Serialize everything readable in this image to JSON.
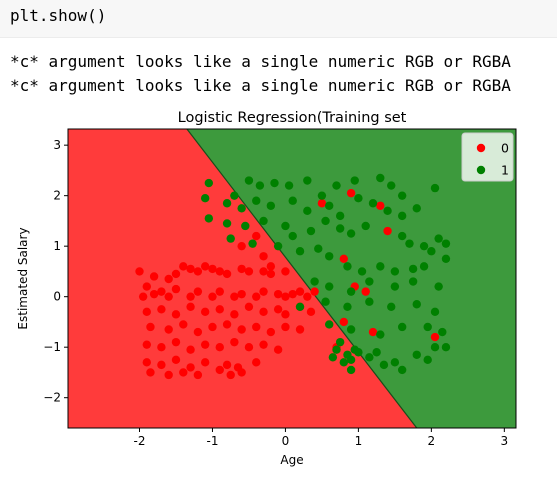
{
  "code": {
    "text": "plt.show()"
  },
  "output": {
    "lines": [
      "*c* argument looks like a single numeric RGB or RGBA",
      "*c* argument looks like a single numeric RGB or RGBA"
    ]
  },
  "colors": {
    "region_0": "#ff3b3b",
    "region_1": "#3d9a3d",
    "point_0": "#ff0000",
    "point_1": "#008000",
    "boundary": "#1a4d1a",
    "cell_bg": "#f7f7f7"
  },
  "chart_data": {
    "type": "scatter",
    "title": "Logistic Regression(Training set",
    "xlabel": "Age",
    "ylabel": "Estimated Salary",
    "xlim": [
      -2.98,
      3.16
    ],
    "ylim": [
      -2.6,
      3.32
    ],
    "x_ticks": [
      "-2",
      "-1",
      "0",
      "1",
      "2",
      "3"
    ],
    "x_tick_values": [
      -2,
      -1,
      0,
      1,
      2,
      3
    ],
    "y_ticks": [
      "3",
      "2",
      "1",
      "0",
      "−1",
      "−2"
    ],
    "y_tick_values": [
      3,
      2,
      1,
      0,
      -1,
      -2
    ],
    "grid": false,
    "legend": {
      "position": "top-right",
      "entries": [
        "0",
        "1"
      ]
    },
    "decision_boundary": {
      "points": [
        [
          -1.35,
          3.32
        ],
        [
          1.8,
          -2.6
        ]
      ]
    },
    "series": [
      {
        "name": "0",
        "points": [
          [
            -2.0,
            0.5
          ],
          [
            -1.9,
            0.2
          ],
          [
            -1.8,
            0.4
          ],
          [
            -1.6,
            0.35
          ],
          [
            -1.5,
            0.45
          ],
          [
            -1.4,
            0.6
          ],
          [
            -1.3,
            0.55
          ],
          [
            -1.2,
            0.5
          ],
          [
            -1.1,
            0.6
          ],
          [
            -1.0,
            0.55
          ],
          [
            -0.9,
            0.5
          ],
          [
            -0.8,
            0.45
          ],
          [
            -0.6,
            0.55
          ],
          [
            -0.5,
            0.5
          ],
          [
            -0.3,
            0.5
          ],
          [
            -0.2,
            0.45
          ],
          [
            -1.95,
            0.0
          ],
          [
            -1.8,
            0.05
          ],
          [
            -1.7,
            0.1
          ],
          [
            -1.6,
            0.0
          ],
          [
            -1.5,
            0.15
          ],
          [
            -1.3,
            0.0
          ],
          [
            -1.2,
            0.1
          ],
          [
            -1.0,
            0.0
          ],
          [
            -0.9,
            0.1
          ],
          [
            -0.7,
            0.0
          ],
          [
            -0.6,
            0.05
          ],
          [
            -0.4,
            0.0
          ],
          [
            -0.3,
            0.1
          ],
          [
            -0.1,
            0.05
          ],
          [
            0.0,
            0.0
          ],
          [
            0.1,
            0.05
          ],
          [
            0.2,
            0.1
          ],
          [
            0.3,
            0.0
          ],
          [
            0.4,
            0.1
          ],
          [
            -1.9,
            -0.3
          ],
          [
            -1.7,
            -0.25
          ],
          [
            -1.5,
            -0.35
          ],
          [
            -1.3,
            -0.2
          ],
          [
            -1.1,
            -0.3
          ],
          [
            -0.9,
            -0.25
          ],
          [
            -0.7,
            -0.35
          ],
          [
            -0.5,
            -0.2
          ],
          [
            -0.3,
            -0.3
          ],
          [
            -0.1,
            -0.25
          ],
          [
            0.0,
            -0.35
          ],
          [
            0.2,
            -0.2
          ],
          [
            0.35,
            -0.3
          ],
          [
            -1.85,
            -0.6
          ],
          [
            -1.6,
            -0.65
          ],
          [
            -1.4,
            -0.55
          ],
          [
            -1.2,
            -0.7
          ],
          [
            -1.0,
            -0.6
          ],
          [
            -0.8,
            -0.55
          ],
          [
            -0.6,
            -0.65
          ],
          [
            -0.4,
            -0.6
          ],
          [
            -0.2,
            -0.7
          ],
          [
            0.0,
            -0.6
          ],
          [
            0.2,
            -0.65
          ],
          [
            -1.9,
            -0.95
          ],
          [
            -1.7,
            -1.0
          ],
          [
            -1.5,
            -0.9
          ],
          [
            -1.3,
            -1.05
          ],
          [
            -1.1,
            -0.95
          ],
          [
            -0.9,
            -1.0
          ],
          [
            -0.7,
            -0.9
          ],
          [
            -0.5,
            -1.0
          ],
          [
            -0.3,
            -0.95
          ],
          [
            -0.1,
            -1.05
          ],
          [
            -1.9,
            -1.3
          ],
          [
            -1.7,
            -1.35
          ],
          [
            -1.5,
            -1.25
          ],
          [
            -1.3,
            -1.4
          ],
          [
            -1.1,
            -1.3
          ],
          [
            -0.9,
            -1.45
          ],
          [
            -0.8,
            -1.35
          ],
          [
            -0.65,
            -1.4
          ],
          [
            -0.4,
            -1.3
          ],
          [
            -1.85,
            -1.5
          ],
          [
            -1.6,
            -1.55
          ],
          [
            -1.4,
            -1.5
          ],
          [
            -1.2,
            -1.55
          ],
          [
            -0.75,
            -1.55
          ],
          [
            -0.6,
            -1.5
          ],
          [
            -0.6,
            1.0
          ],
          [
            -0.4,
            1.2
          ],
          [
            -0.3,
            0.8
          ],
          [
            -0.2,
            0.6
          ],
          [
            0.0,
            0.5
          ],
          [
            0.9,
            2.05
          ],
          [
            1.3,
            1.8
          ],
          [
            0.5,
            1.85
          ],
          [
            1.4,
            1.3
          ],
          [
            0.8,
            0.75
          ],
          [
            1.1,
            0.1
          ],
          [
            0.95,
            0.2
          ],
          [
            0.8,
            -0.5
          ],
          [
            1.2,
            -0.7
          ],
          [
            2.05,
            -0.8
          ],
          [
            0.7,
            -1.0
          ]
        ]
      },
      {
        "name": "1",
        "points": [
          [
            -1.05,
            2.25
          ],
          [
            -0.7,
            2.0
          ],
          [
            -0.5,
            2.3
          ],
          [
            -0.35,
            2.2
          ],
          [
            -0.15,
            2.25
          ],
          [
            0.05,
            2.2
          ],
          [
            0.3,
            2.3
          ],
          [
            0.5,
            2.0
          ],
          [
            0.7,
            2.2
          ],
          [
            0.95,
            2.3
          ],
          [
            1.3,
            2.35
          ],
          [
            1.45,
            2.2
          ],
          [
            1.6,
            2.0
          ],
          [
            2.05,
            2.15
          ],
          [
            -1.1,
            1.95
          ],
          [
            -0.8,
            1.85
          ],
          [
            -0.6,
            1.75
          ],
          [
            -0.4,
            1.9
          ],
          [
            -0.2,
            1.8
          ],
          [
            0.1,
            1.9
          ],
          [
            0.3,
            1.7
          ],
          [
            0.6,
            1.8
          ],
          [
            0.75,
            1.6
          ],
          [
            1.0,
            1.95
          ],
          [
            1.2,
            1.85
          ],
          [
            1.4,
            1.7
          ],
          [
            1.6,
            1.6
          ],
          [
            1.8,
            1.75
          ],
          [
            -1.05,
            1.55
          ],
          [
            -0.8,
            1.45
          ],
          [
            -0.55,
            1.4
          ],
          [
            -0.3,
            1.5
          ],
          [
            0.0,
            1.4
          ],
          [
            0.1,
            1.2
          ],
          [
            0.35,
            1.3
          ],
          [
            0.55,
            1.5
          ],
          [
            0.75,
            1.35
          ],
          [
            0.9,
            1.25
          ],
          [
            1.1,
            1.4
          ],
          [
            1.6,
            1.2
          ],
          [
            1.7,
            1.05
          ],
          [
            1.9,
            1.0
          ],
          [
            2.1,
            1.15
          ],
          [
            2.2,
            1.05
          ],
          [
            -0.75,
            1.15
          ],
          [
            -0.45,
            1.05
          ],
          [
            -0.1,
            1.0
          ],
          [
            0.2,
            0.9
          ],
          [
            0.45,
            0.95
          ],
          [
            0.6,
            0.8
          ],
          [
            0.85,
            0.6
          ],
          [
            1.05,
            0.5
          ],
          [
            1.3,
            0.6
          ],
          [
            1.5,
            0.5
          ],
          [
            1.75,
            0.55
          ],
          [
            1.9,
            0.6
          ],
          [
            2.0,
            0.9
          ],
          [
            2.2,
            0.75
          ],
          [
            0.4,
            0.3
          ],
          [
            0.6,
            0.2
          ],
          [
            0.9,
            0.1
          ],
          [
            1.15,
            0.3
          ],
          [
            1.5,
            0.2
          ],
          [
            1.75,
            0.3
          ],
          [
            2.1,
            0.2
          ],
          [
            0.2,
            -0.2
          ],
          [
            0.55,
            -0.1
          ],
          [
            0.85,
            -0.2
          ],
          [
            1.15,
            -0.1
          ],
          [
            1.45,
            -0.2
          ],
          [
            1.8,
            -0.15
          ],
          [
            2.05,
            -0.3
          ],
          [
            0.6,
            -0.55
          ],
          [
            0.9,
            -0.65
          ],
          [
            1.3,
            -0.75
          ],
          [
            1.6,
            -0.6
          ],
          [
            1.95,
            -0.6
          ],
          [
            2.15,
            -0.7
          ],
          [
            0.75,
            -0.9
          ],
          [
            0.95,
            -1.05
          ],
          [
            1.15,
            -1.2
          ],
          [
            1.25,
            -1.1
          ],
          [
            1.5,
            -1.3
          ],
          [
            1.8,
            -1.15
          ],
          [
            1.95,
            -1.25
          ],
          [
            2.05,
            -1.0
          ],
          [
            2.2,
            -1.0
          ],
          [
            0.65,
            -1.2
          ],
          [
            0.8,
            -1.3
          ],
          [
            0.85,
            -1.15
          ],
          [
            0.9,
            -1.25
          ],
          [
            1.0,
            -1.1
          ],
          [
            0.7,
            -1.05
          ],
          [
            1.35,
            -1.35
          ],
          [
            1.6,
            -1.45
          ],
          [
            0.9,
            -1.45
          ]
        ]
      }
    ]
  }
}
